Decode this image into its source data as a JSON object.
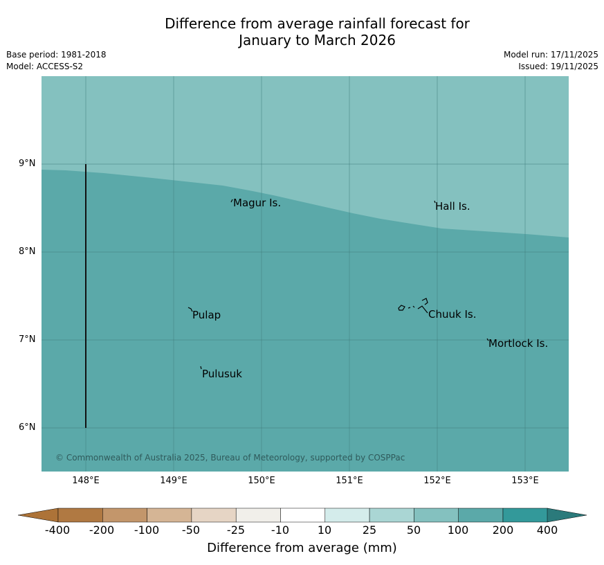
{
  "title": {
    "line1": "Difference from average rainfall forecast for",
    "line2": "January to March 2026"
  },
  "meta": {
    "base_period": "Base period: 1981-2018",
    "model": "Model: ACCESS-S2",
    "model_run": "Model run: 17/11/2025",
    "issued": "Issued: 19/11/2025"
  },
  "map": {
    "lat_labels": [
      "9°N",
      "8°N",
      "7°N",
      "6°N"
    ],
    "lon_labels": [
      "148°E",
      "149°E",
      "150°E",
      "151°E",
      "152°E",
      "153°E"
    ],
    "places": [
      {
        "name": "Magur Is.",
        "lon": 149.7,
        "lat": 8.55
      },
      {
        "name": "Hall Is.",
        "lon": 151.97,
        "lat": 8.52
      },
      {
        "name": "Pulap",
        "lon": 149.2,
        "lat": 7.3
      },
      {
        "name": "Chuuk Is.",
        "lon": 151.9,
        "lat": 7.3
      },
      {
        "name": "Mortlock Is.",
        "lon": 152.6,
        "lat": 6.97
      },
      {
        "name": "Pulusuk",
        "lon": 149.32,
        "lat": 6.63
      }
    ],
    "copyright": "© Commonwealth of Australia 2025, Bureau of Meteorology, supported by COSPPac",
    "colors": {
      "band_25_50": "#84c1bf",
      "band_50_100": "#5ba9a9",
      "grid": "#3f7d7c"
    }
  },
  "colorbar": {
    "title": "Difference from average (mm)",
    "ticks": [
      "-400",
      "-200",
      "-100",
      "-50",
      "-25",
      "-10",
      "10",
      "25",
      "50",
      "100",
      "200",
      "400"
    ],
    "colors": [
      "#ad7338",
      "#b07942",
      "#c3966b",
      "#d5b595",
      "#e6d5c5",
      "#f1efea",
      "#ffffff",
      "#d4eceb",
      "#aad6d4",
      "#84c1bf",
      "#5ba9a9",
      "#33999a",
      "#2b7a7b"
    ]
  }
}
